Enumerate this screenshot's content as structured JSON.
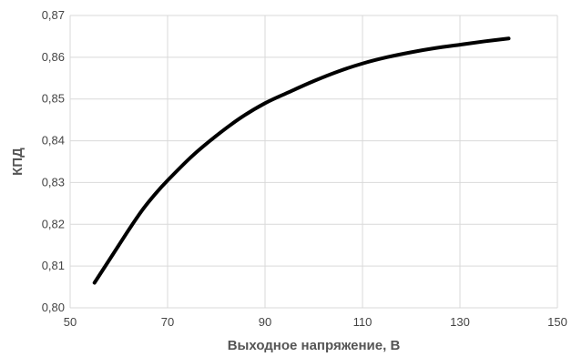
{
  "chart_data": {
    "type": "line",
    "title": "",
    "xlabel": "Выходное напряжение, В",
    "ylabel": "КПД",
    "xlim": [
      50,
      150
    ],
    "ylim": [
      0.8,
      0.87
    ],
    "x_ticks": [
      50,
      70,
      90,
      110,
      130,
      150
    ],
    "y_ticks": [
      0.8,
      0.81,
      0.82,
      0.83,
      0.84,
      0.85,
      0.86,
      0.87
    ],
    "x_tick_labels": [
      "50",
      "70",
      "90",
      "110",
      "130",
      "150"
    ],
    "y_tick_labels": [
      "0,80",
      "0,81",
      "0,82",
      "0,83",
      "0,84",
      "0,85",
      "0,86",
      "0,87"
    ],
    "grid": true,
    "legend": "none",
    "line_color": "#000000",
    "grid_color": "#d9d9d9",
    "series": [
      {
        "x": [
          55,
          57.5,
          60,
          62.5,
          65,
          67.5,
          70,
          75,
          80,
          85,
          90,
          95,
          100,
          105,
          110,
          115,
          120,
          125,
          130,
          135,
          140
        ],
        "values": [
          0.806,
          0.8105,
          0.815,
          0.8195,
          0.8237,
          0.8273,
          0.8305,
          0.8363,
          0.8412,
          0.8455,
          0.849,
          0.8517,
          0.8543,
          0.8566,
          0.8585,
          0.86,
          0.8612,
          0.8622,
          0.863,
          0.8638,
          0.8645
        ]
      }
    ]
  }
}
